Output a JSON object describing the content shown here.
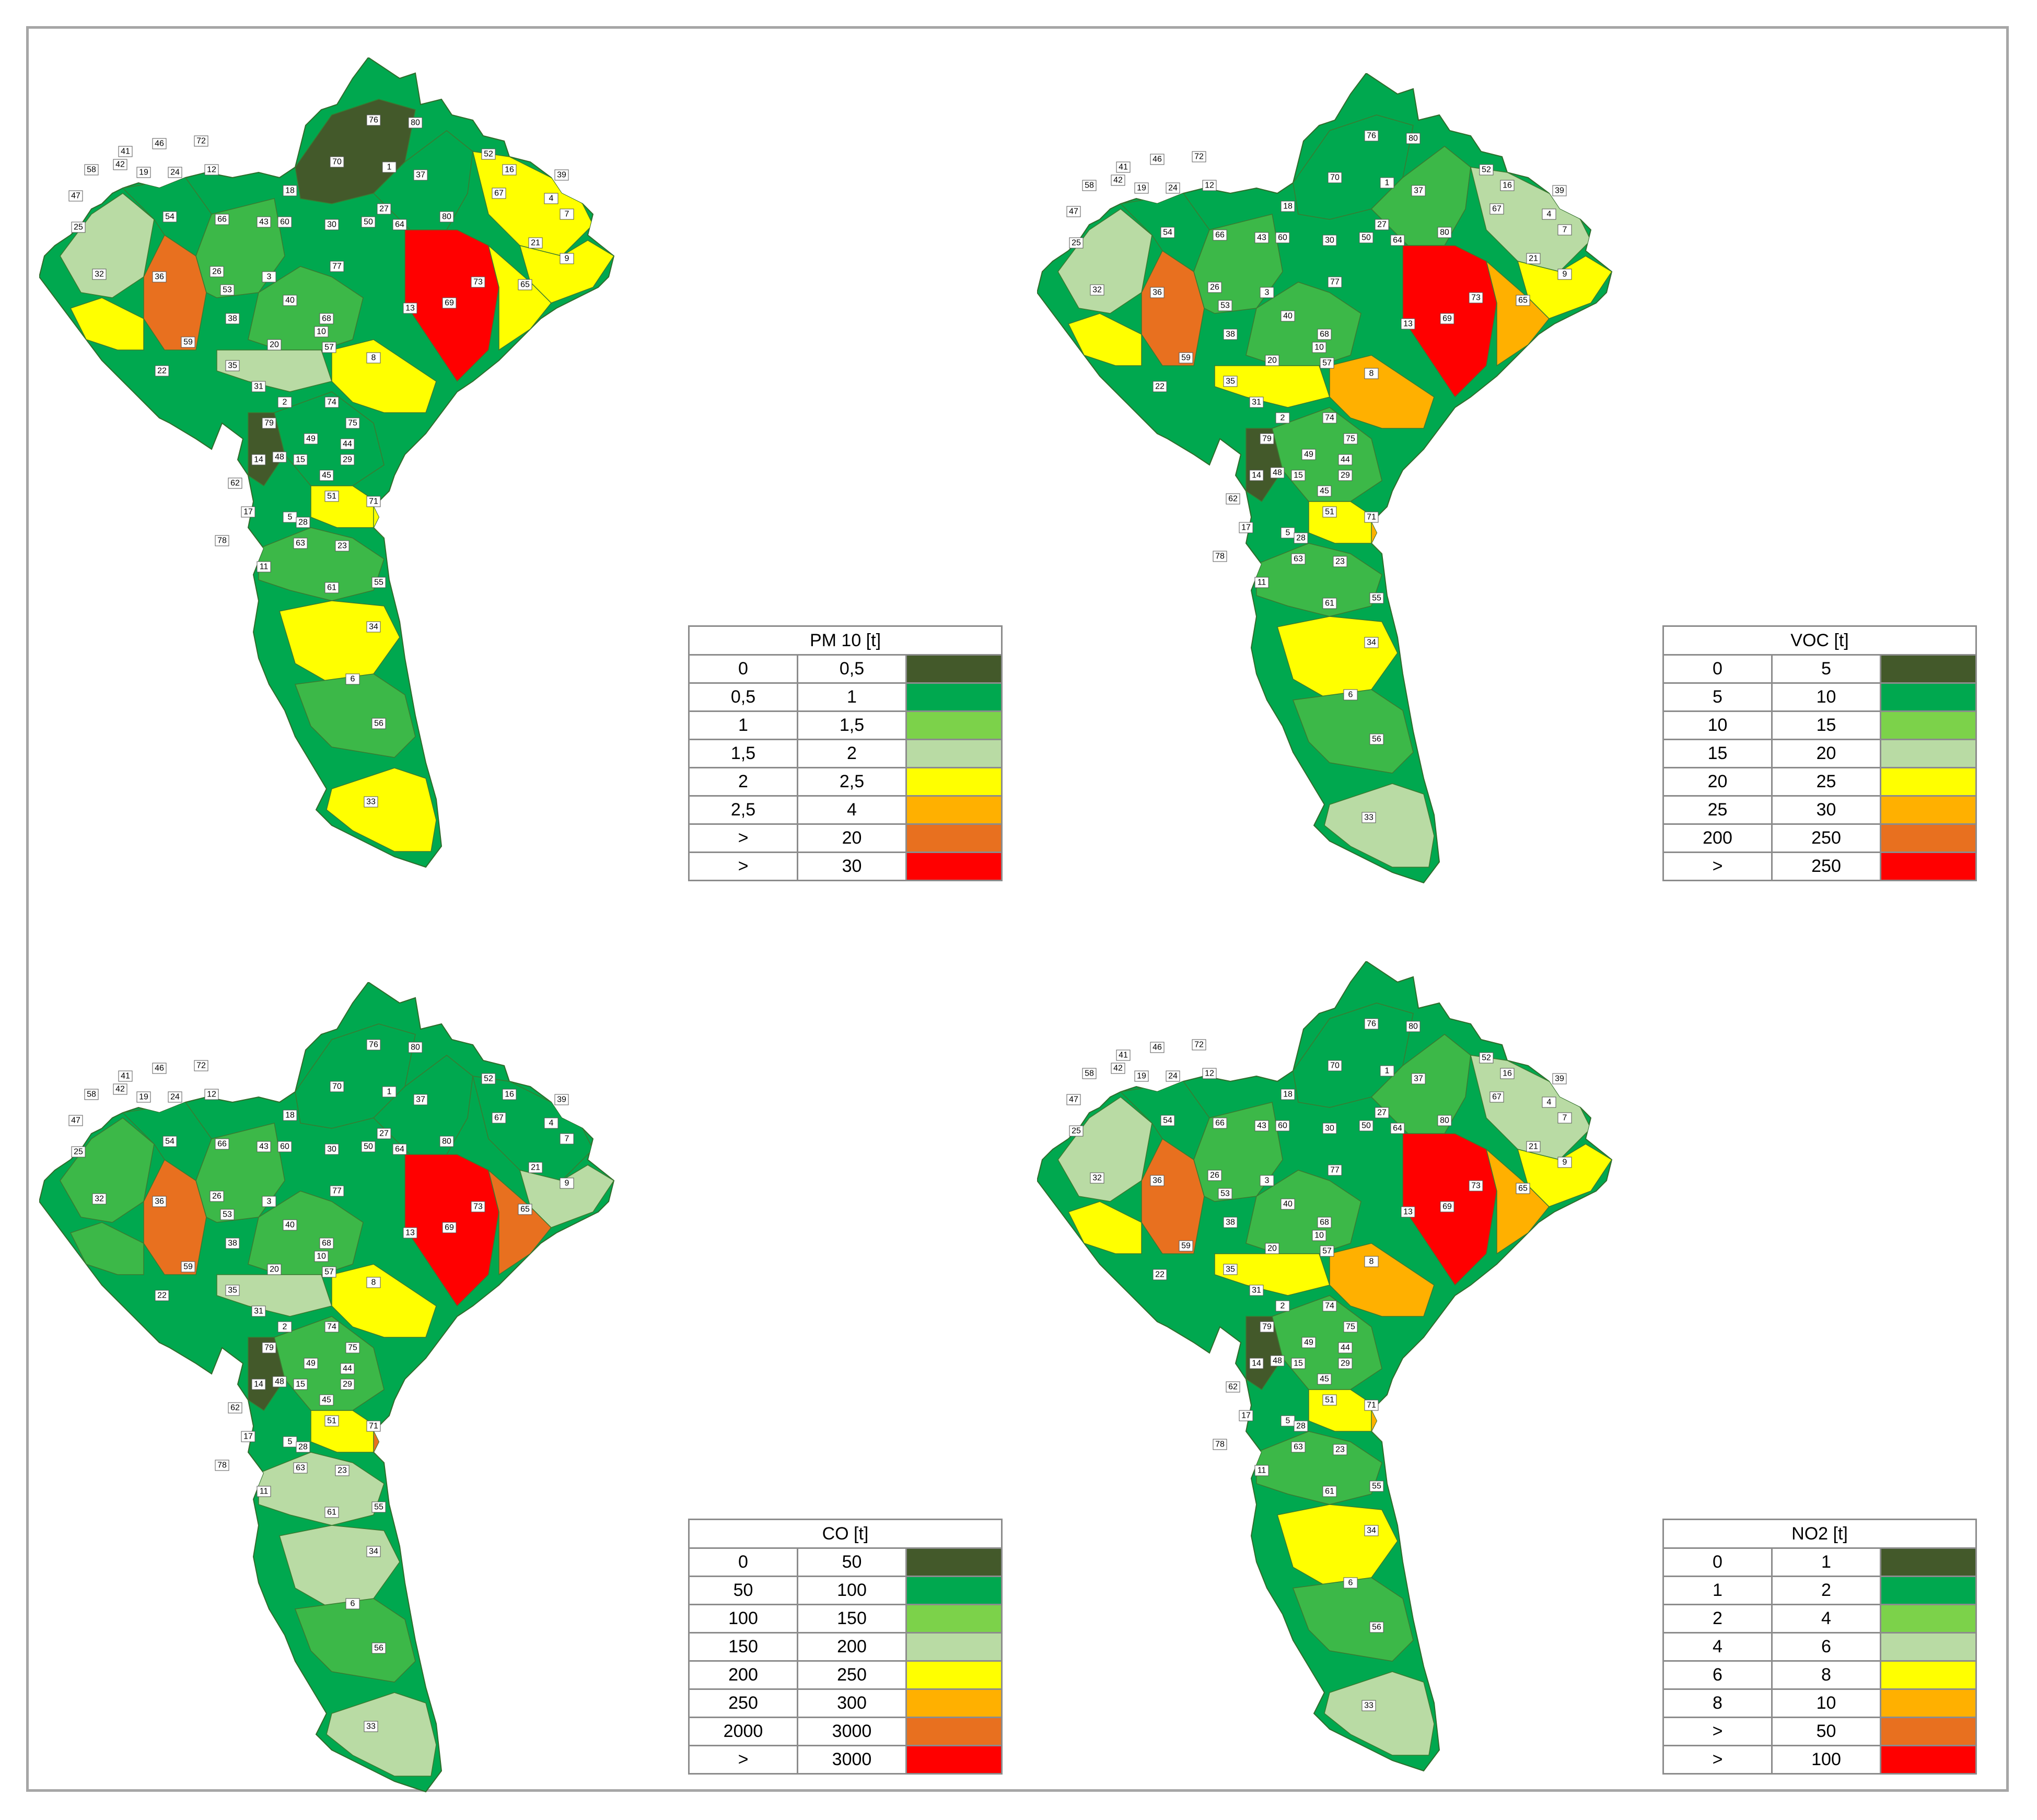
{
  "colors": {
    "darkest_green": "#43592a",
    "dark_green": "#00a84f",
    "green": "#3cb848",
    "light_green": "#7cd24a",
    "pale_green": "#b9dba4",
    "yellow": "#ffff00",
    "light_orange": "#ffb000",
    "orange": "#e8701f",
    "red": "#ff0000"
  },
  "zone_labels": [
    "76",
    "80",
    "41",
    "46",
    "72",
    "58",
    "42",
    "19",
    "24",
    "12",
    "70",
    "1",
    "37",
    "52",
    "16",
    "39",
    "47",
    "18",
    "67",
    "4",
    "7",
    "54",
    "66",
    "27",
    "80",
    "25",
    "43",
    "60",
    "30",
    "50",
    "64",
    "21",
    "9",
    "32",
    "36",
    "26",
    "77",
    "3",
    "73",
    "65",
    "53",
    "13",
    "69",
    "40",
    "38",
    "68",
    "10",
    "59",
    "20",
    "57",
    "8",
    "35",
    "22",
    "31",
    "74",
    "2",
    "79",
    "75",
    "49",
    "44",
    "14",
    "48",
    "15",
    "29",
    "45",
    "62",
    "51",
    "71",
    "17",
    "5",
    "28",
    "78",
    "63",
    "23",
    "11",
    "61",
    "55",
    "34",
    "6",
    "56",
    "33"
  ],
  "maps": [
    {
      "name": "PM 10",
      "legend": {
        "title": "PM 10 [t]",
        "rows": [
          {
            "from": "0",
            "to": "0,5",
            "color": "#43592a"
          },
          {
            "from": "0,5",
            "to": "1",
            "color": "#00a84f"
          },
          {
            "from": "1",
            "to": "1,5",
            "color": "#7cd24a"
          },
          {
            "from": "1,5",
            "to": "2",
            "color": "#b9dba4"
          },
          {
            "from": "2",
            "to": "2,5",
            "color": "#ffff00"
          },
          {
            "from": "2,5",
            "to": "4",
            "color": "#ffb000"
          },
          {
            "from": ">",
            "to": "20",
            "color": "#e8701f"
          },
          {
            "from": ">",
            "to": "30",
            "color": "#ff0000"
          }
        ]
      }
    },
    {
      "name": "VOC",
      "legend": {
        "title": "VOC [t]",
        "rows": [
          {
            "from": "0",
            "to": "5",
            "color": "#43592a"
          },
          {
            "from": "5",
            "to": "10",
            "color": "#00a84f"
          },
          {
            "from": "10",
            "to": "15",
            "color": "#7cd24a"
          },
          {
            "from": "15",
            "to": "20",
            "color": "#b9dba4"
          },
          {
            "from": "20",
            "to": "25",
            "color": "#ffff00"
          },
          {
            "from": "25",
            "to": "30",
            "color": "#ffb000"
          },
          {
            "from": "200",
            "to": "250",
            "color": "#e8701f"
          },
          {
            "from": ">",
            "to": "250",
            "color": "#ff0000"
          }
        ]
      }
    },
    {
      "name": "CO",
      "legend": {
        "title": "CO [t]",
        "rows": [
          {
            "from": "0",
            "to": "50",
            "color": "#43592a"
          },
          {
            "from": "50",
            "to": "100",
            "color": "#00a84f"
          },
          {
            "from": "100",
            "to": "150",
            "color": "#7cd24a"
          },
          {
            "from": "150",
            "to": "200",
            "color": "#b9dba4"
          },
          {
            "from": "200",
            "to": "250",
            "color": "#ffff00"
          },
          {
            "from": "250",
            "to": "300",
            "color": "#ffb000"
          },
          {
            "from": "2000",
            "to": "3000",
            "color": "#e8701f"
          },
          {
            "from": ">",
            "to": "3000",
            "color": "#ff0000"
          }
        ]
      }
    },
    {
      "name": "NO2",
      "legend": {
        "title": "NO2 [t]",
        "rows": [
          {
            "from": "0",
            "to": "1",
            "color": "#43592a"
          },
          {
            "from": "1",
            "to": "2",
            "color": "#00a84f"
          },
          {
            "from": "2",
            "to": "4",
            "color": "#7cd24a"
          },
          {
            "from": "4",
            "to": "6",
            "color": "#b9dba4"
          },
          {
            "from": "6",
            "to": "8",
            "color": "#ffff00"
          },
          {
            "from": "8",
            "to": "10",
            "color": "#ffb000"
          },
          {
            "from": ">",
            "to": "50",
            "color": "#e8701f"
          },
          {
            "from": ">",
            "to": "100",
            "color": "#ff0000"
          }
        ]
      }
    }
  ]
}
